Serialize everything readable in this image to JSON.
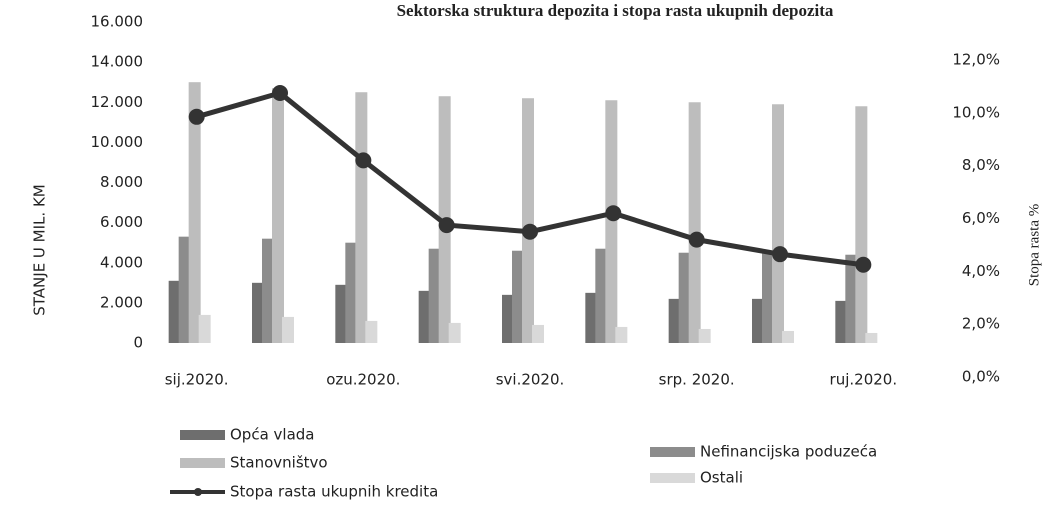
{
  "chart_data": {
    "type": "bar-line",
    "title": "Sektorska struktura depozita i stopa rasta ukupnih depozita",
    "y_label": "STANJE U MIL. KM",
    "y2_label": "Stopa rasta %",
    "categories": [
      "sij.2020.",
      null,
      "ozu.2020.",
      null,
      "svi.2020.",
      null,
      "srp. 2020.",
      null,
      "ruj.2020."
    ],
    "ylim": [
      0,
      16000
    ],
    "yticks": [
      0,
      {
        "value": 2000,
        "label": "2.000"
      },
      {
        "value": 4000,
        "label": "4.000"
      },
      {
        "value": 6000,
        "label": "6.000"
      },
      {
        "value": 8000,
        "label": "8.000"
      },
      {
        "value": 10000,
        "label": "10.000"
      },
      {
        "value": 12000,
        "label": "12.000"
      },
      {
        "value": 14000,
        "label": "14.000"
      },
      {
        "value": 16000,
        "label": "16.000"
      }
    ],
    "y2lim": [
      0,
      12
    ],
    "y2ticks": [
      {
        "value": 0,
        "label": "0,0%"
      },
      {
        "value": 2,
        "label": "2,0%"
      },
      {
        "value": 4,
        "label": "4,0%"
      },
      {
        "value": 6,
        "label": "6,0%"
      },
      {
        "value": 8,
        "label": "8,0%"
      },
      {
        "value": 10,
        "label": "10,0%"
      },
      {
        "value": 12,
        "label": "12,0%"
      }
    ],
    "series": [
      {
        "name": "Opća vlada",
        "color": "#6e6e6e",
        "values": [
          3100,
          3000,
          2900,
          2600,
          2400,
          2500,
          2200,
          2200,
          2100
        ]
      },
      {
        "name": "Nefinancijska poduzeća",
        "color": "#8c8c8c",
        "values": [
          5300,
          5200,
          5000,
          4700,
          4600,
          4700,
          4500,
          4500,
          4400
        ]
      },
      {
        "name": "Stanovništvo",
        "color": "#bdbdbd",
        "values": [
          13000,
          12700,
          12500,
          12300,
          12200,
          12100,
          12000,
          11900,
          11800
        ]
      },
      {
        "name": "Ostali",
        "color": "#d9d9d9",
        "values": [
          1400,
          1300,
          1100,
          1000,
          900,
          800,
          700,
          600,
          500
        ]
      },
      {
        "name": "Stopa rasta ukupnih kredita",
        "color": "#333333",
        "type": "line",
        "axis": "y2",
        "values": [
          9.85,
          10.75,
          8.2,
          5.75,
          5.5,
          6.2,
          5.2,
          4.65,
          4.25
        ]
      }
    ]
  }
}
